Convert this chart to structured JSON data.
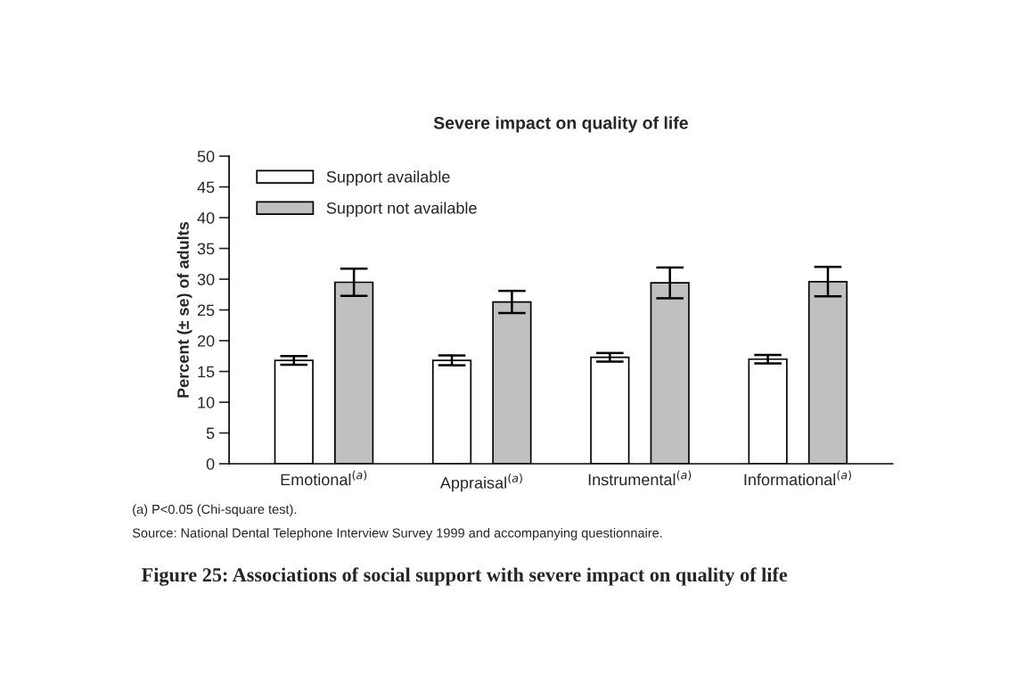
{
  "chart_data": {
    "type": "bar",
    "title": "Severe impact on quality of life",
    "ylabel": "Percent (± se) of adults",
    "categories": [
      "Emotional$^{(a)}$",
      "Appraisal$^{(a)}$",
      "Instrumental$^{(a)}$",
      "Informational$^{(a)}$"
    ],
    "series": [
      {
        "name": "Support available",
        "color": "#ffffff",
        "values": [
          16.8,
          16.8,
          17.3,
          17.0
        ],
        "errors": [
          0.7,
          0.8,
          0.7,
          0.7
        ]
      },
      {
        "name": "Support not available",
        "color": "#c0c0c0",
        "values": [
          29.5,
          26.3,
          29.4,
          29.6
        ],
        "errors": [
          2.2,
          1.8,
          2.5,
          2.4
        ]
      }
    ],
    "ylim": [
      0,
      50
    ],
    "yticks": [
      0,
      5,
      10,
      15,
      20,
      25,
      30,
      35,
      40,
      45,
      50
    ],
    "grid": false,
    "legend": "top left",
    "annotations": [
      "(a) P<0.05 (Chi-square test).",
      "Source: National Dental Telephone Interview Survey 1999 and accompanying questionnaire.",
      "Figure 25: Associations of social support with severe impact on quality of life"
    ]
  }
}
